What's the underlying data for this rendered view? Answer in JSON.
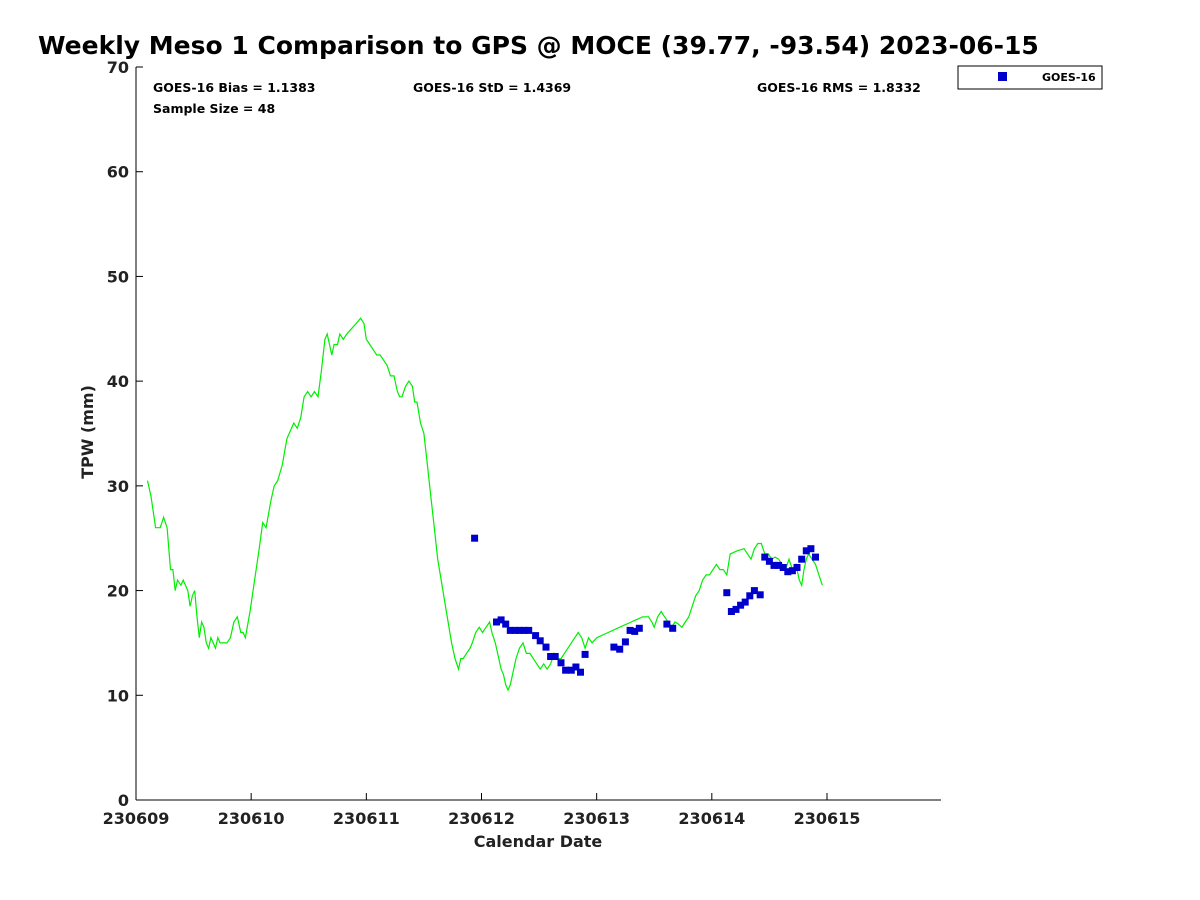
{
  "chart_data": {
    "type": "line+scatter",
    "title": "Weekly Meso 1 Comparison to GPS @ MOCE (39.77, -93.54) 2023-06-15",
    "xlabel": "Calendar Date",
    "ylabel": "TPW (mm)",
    "xlim": [
      0,
      6.99
    ],
    "ylim": [
      0,
      70
    ],
    "x_ticks": [
      0,
      1,
      2,
      3,
      4,
      5,
      6
    ],
    "x_tick_labels": [
      "230609",
      "230610",
      "230611",
      "230612",
      "230613",
      "230614",
      "230615"
    ],
    "y_ticks": [
      0,
      10,
      20,
      30,
      40,
      50,
      60,
      70
    ],
    "legend_position": "upper-right-outside",
    "stats": {
      "bias": "GOES-16 Bias = 1.1383",
      "std": "GOES-16 StD = 1.4369",
      "rms": "GOES-16 RMS = 1.8332",
      "sample": "Sample Size = 48"
    },
    "series": [
      {
        "name": "GPS",
        "kind": "line",
        "color": "#00ee00",
        "points": [
          [
            0.1,
            30.5
          ],
          [
            0.13,
            29.0
          ],
          [
            0.17,
            26.0
          ],
          [
            0.21,
            26.0
          ],
          [
            0.24,
            27.0
          ],
          [
            0.27,
            26.0
          ],
          [
            0.3,
            22.0
          ],
          [
            0.32,
            22.0
          ],
          [
            0.34,
            20.0
          ],
          [
            0.36,
            21.0
          ],
          [
            0.39,
            20.5
          ],
          [
            0.41,
            21.0
          ],
          [
            0.43,
            20.5
          ],
          [
            0.45,
            20.0
          ],
          [
            0.47,
            18.5
          ],
          [
            0.49,
            19.5
          ],
          [
            0.51,
            20.0
          ],
          [
            0.53,
            17.5
          ],
          [
            0.55,
            15.5
          ],
          [
            0.57,
            17.0
          ],
          [
            0.59,
            16.5
          ],
          [
            0.61,
            15.0
          ],
          [
            0.63,
            14.5
          ],
          [
            0.65,
            15.5
          ],
          [
            0.67,
            15.0
          ],
          [
            0.69,
            14.5
          ],
          [
            0.71,
            15.5
          ],
          [
            0.73,
            15.0
          ],
          [
            0.76,
            15.0
          ],
          [
            0.79,
            15.0
          ],
          [
            0.82,
            15.5
          ],
          [
            0.85,
            17.0
          ],
          [
            0.88,
            17.5
          ],
          [
            0.91,
            16.0
          ],
          [
            0.93,
            16.0
          ],
          [
            0.95,
            15.5
          ],
          [
            0.99,
            18.0
          ],
          [
            1.03,
            21.0
          ],
          [
            1.07,
            24.0
          ],
          [
            1.1,
            26.5
          ],
          [
            1.13,
            26.0
          ],
          [
            1.17,
            28.5
          ],
          [
            1.2,
            30.0
          ],
          [
            1.23,
            30.5
          ],
          [
            1.27,
            32.0
          ],
          [
            1.31,
            34.5
          ],
          [
            1.35,
            35.5
          ],
          [
            1.37,
            36.0
          ],
          [
            1.4,
            35.5
          ],
          [
            1.43,
            36.5
          ],
          [
            1.46,
            38.5
          ],
          [
            1.49,
            39.0
          ],
          [
            1.52,
            38.5
          ],
          [
            1.55,
            39.0
          ],
          [
            1.58,
            38.5
          ],
          [
            1.61,
            41.0
          ],
          [
            1.64,
            44.0
          ],
          [
            1.66,
            44.5
          ],
          [
            1.68,
            43.5
          ],
          [
            1.7,
            42.5
          ],
          [
            1.72,
            43.5
          ],
          [
            1.75,
            43.5
          ],
          [
            1.77,
            44.5
          ],
          [
            1.8,
            44.0
          ],
          [
            1.83,
            44.5
          ],
          [
            1.87,
            45.0
          ],
          [
            1.91,
            45.5
          ],
          [
            1.95,
            46.0
          ],
          [
            1.98,
            45.5
          ],
          [
            2.0,
            44.0
          ],
          [
            2.03,
            43.5
          ],
          [
            2.06,
            43.0
          ],
          [
            2.09,
            42.5
          ],
          [
            2.12,
            42.5
          ],
          [
            2.15,
            42.0
          ],
          [
            2.18,
            41.5
          ],
          [
            2.21,
            40.5
          ],
          [
            2.24,
            40.5
          ],
          [
            2.27,
            39.0
          ],
          [
            2.29,
            38.5
          ],
          [
            2.31,
            38.5
          ],
          [
            2.34,
            39.5
          ],
          [
            2.37,
            40.0
          ],
          [
            2.4,
            39.5
          ],
          [
            2.42,
            38.0
          ],
          [
            2.44,
            38.0
          ],
          [
            2.47,
            36.0
          ],
          [
            2.5,
            35.0
          ],
          [
            2.53,
            32.0
          ],
          [
            2.56,
            29.0
          ],
          [
            2.59,
            26.0
          ],
          [
            2.62,
            23.0
          ],
          [
            2.65,
            21.0
          ],
          [
            2.68,
            19.0
          ],
          [
            2.71,
            17.0
          ],
          [
            2.74,
            15.0
          ],
          [
            2.77,
            13.5
          ],
          [
            2.8,
            12.5
          ],
          [
            2.82,
            13.5
          ],
          [
            2.84,
            13.5
          ],
          [
            2.87,
            14.0
          ],
          [
            2.9,
            14.5
          ],
          [
            2.92,
            15.0
          ],
          [
            2.95,
            16.0
          ],
          [
            2.98,
            16.5
          ],
          [
            3.01,
            16.0
          ],
          [
            3.04,
            16.5
          ],
          [
            3.07,
            17.0
          ],
          [
            3.09,
            16.0
          ],
          [
            3.12,
            15.0
          ],
          [
            3.15,
            13.5
          ],
          [
            3.17,
            12.5
          ],
          [
            3.19,
            12.0
          ],
          [
            3.21,
            11.0
          ],
          [
            3.23,
            10.5
          ],
          [
            3.25,
            11.0
          ],
          [
            3.27,
            12.0
          ],
          [
            3.3,
            13.5
          ],
          [
            3.33,
            14.5
          ],
          [
            3.36,
            15.0
          ],
          [
            3.39,
            14.0
          ],
          [
            3.42,
            14.0
          ],
          [
            3.45,
            13.5
          ],
          [
            3.48,
            13.0
          ],
          [
            3.51,
            12.5
          ],
          [
            3.54,
            13.0
          ],
          [
            3.57,
            12.5
          ],
          [
            3.6,
            13.0
          ],
          [
            3.63,
            14.0
          ],
          [
            3.66,
            13.5
          ],
          [
            3.69,
            13.5
          ],
          [
            3.72,
            14.0
          ],
          [
            3.75,
            14.5
          ],
          [
            3.78,
            15.0
          ],
          [
            3.81,
            15.5
          ],
          [
            3.84,
            16.0
          ],
          [
            3.87,
            15.5
          ],
          [
            3.9,
            14.5
          ],
          [
            3.93,
            15.5
          ],
          [
            3.96,
            15.0
          ],
          [
            4.0,
            15.5
          ],
          [
            4.1,
            16.0
          ],
          [
            4.2,
            16.5
          ],
          [
            4.3,
            17.0
          ],
          [
            4.4,
            17.5
          ],
          [
            4.45,
            17.5
          ],
          [
            4.48,
            17.0
          ],
          [
            4.5,
            16.5
          ],
          [
            4.53,
            17.5
          ],
          [
            4.56,
            18.0
          ],
          [
            4.59,
            17.5
          ],
          [
            4.62,
            17.0
          ],
          [
            4.65,
            16.5
          ],
          [
            4.68,
            17.0
          ],
          [
            4.71,
            16.8
          ],
          [
            4.74,
            16.5
          ],
          [
            4.77,
            17.0
          ],
          [
            4.8,
            17.5
          ],
          [
            4.83,
            18.5
          ],
          [
            4.86,
            19.5
          ],
          [
            4.89,
            20.0
          ],
          [
            4.92,
            21.0
          ],
          [
            4.95,
            21.5
          ],
          [
            4.98,
            21.5
          ],
          [
            5.01,
            22.0
          ],
          [
            5.04,
            22.5
          ],
          [
            5.07,
            22.0
          ],
          [
            5.1,
            22.0
          ],
          [
            5.13,
            21.5
          ],
          [
            5.16,
            23.5
          ],
          [
            5.22,
            23.8
          ],
          [
            5.28,
            24.0
          ],
          [
            5.31,
            23.5
          ],
          [
            5.34,
            23.0
          ],
          [
            5.37,
            24.0
          ],
          [
            5.4,
            24.5
          ],
          [
            5.43,
            24.5
          ],
          [
            5.46,
            23.5
          ],
          [
            5.49,
            23.5
          ],
          [
            5.52,
            23.0
          ],
          [
            5.55,
            23.2
          ],
          [
            5.58,
            23.0
          ],
          [
            5.61,
            22.5
          ],
          [
            5.64,
            22.0
          ],
          [
            5.67,
            23.0
          ],
          [
            5.7,
            22.0
          ],
          [
            5.73,
            22.5
          ],
          [
            5.76,
            21.0
          ],
          [
            5.78,
            20.5
          ],
          [
            5.8,
            22.0
          ],
          [
            5.82,
            23.0
          ],
          [
            5.84,
            23.5
          ],
          [
            5.87,
            23.0
          ],
          [
            5.9,
            22.5
          ],
          [
            5.93,
            21.5
          ],
          [
            5.96,
            20.5
          ]
        ]
      },
      {
        "name": "GOES-16",
        "kind": "scatter",
        "marker": "square",
        "color": "#0000cc",
        "points": [
          [
            2.94,
            25.0
          ],
          [
            3.13,
            17.0
          ],
          [
            3.17,
            17.2
          ],
          [
            3.21,
            16.8
          ],
          [
            3.25,
            16.2
          ],
          [
            3.29,
            16.2
          ],
          [
            3.33,
            16.2
          ],
          [
            3.37,
            16.2
          ],
          [
            3.41,
            16.2
          ],
          [
            3.47,
            15.7
          ],
          [
            3.51,
            15.2
          ],
          [
            3.56,
            14.6
          ],
          [
            3.6,
            13.7
          ],
          [
            3.64,
            13.7
          ],
          [
            3.69,
            13.1
          ],
          [
            3.73,
            12.4
          ],
          [
            3.78,
            12.4
          ],
          [
            3.82,
            12.7
          ],
          [
            3.86,
            12.2
          ],
          [
            3.9,
            13.9
          ],
          [
            4.15,
            14.6
          ],
          [
            4.2,
            14.4
          ],
          [
            4.25,
            15.1
          ],
          [
            4.29,
            16.2
          ],
          [
            4.33,
            16.1
          ],
          [
            4.37,
            16.4
          ],
          [
            4.61,
            16.8
          ],
          [
            4.66,
            16.4
          ],
          [
            5.13,
            19.8
          ],
          [
            5.17,
            18.0
          ],
          [
            5.21,
            18.2
          ],
          [
            5.25,
            18.6
          ],
          [
            5.29,
            18.9
          ],
          [
            5.33,
            19.5
          ],
          [
            5.37,
            20.0
          ],
          [
            5.42,
            19.6
          ],
          [
            5.46,
            23.2
          ],
          [
            5.5,
            22.8
          ],
          [
            5.54,
            22.4
          ],
          [
            5.58,
            22.4
          ],
          [
            5.62,
            22.2
          ],
          [
            5.66,
            21.8
          ],
          [
            5.7,
            21.9
          ],
          [
            5.74,
            22.2
          ],
          [
            5.78,
            23.0
          ],
          [
            5.82,
            23.8
          ],
          [
            5.86,
            24.0
          ],
          [
            5.9,
            23.2
          ]
        ]
      }
    ]
  }
}
